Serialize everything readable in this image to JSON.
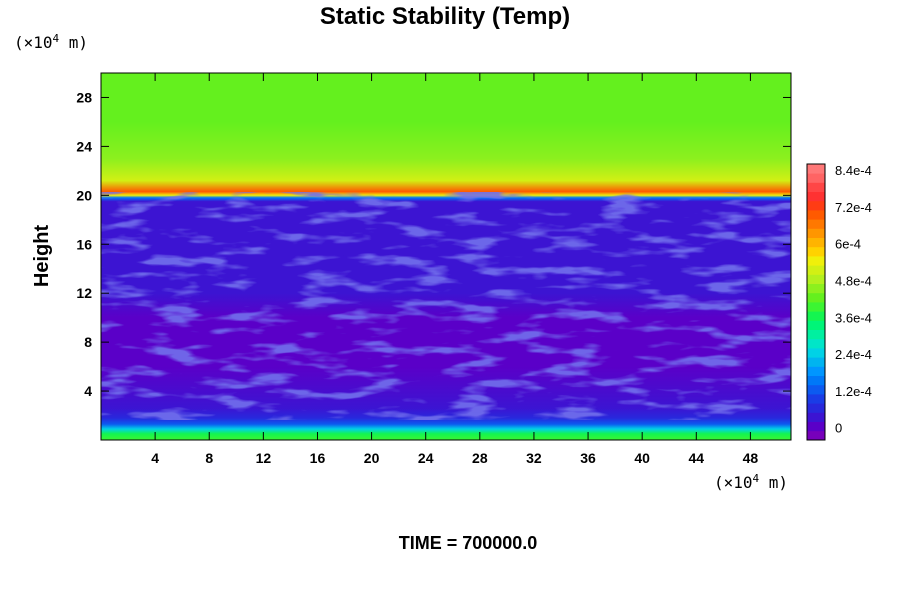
{
  "chart_data": {
    "type": "heatmap",
    "title": "Static Stability (Temp)",
    "xlabel": "",
    "ylabel": "Height",
    "x_unit_prefix": "(×10",
    "x_unit_exp": "4",
    "x_unit_suffix": " m)",
    "y_unit_prefix": "(×10",
    "y_unit_exp": "4",
    "y_unit_suffix": " m)",
    "xlim": [
      0,
      51
    ],
    "ylim": [
      0,
      30
    ],
    "x_ticks": [
      "4",
      "8",
      "12",
      "16",
      "20",
      "24",
      "28",
      "32",
      "36",
      "40",
      "44",
      "48"
    ],
    "y_ticks": [
      "4",
      "8",
      "12",
      "16",
      "20",
      "24",
      "28"
    ],
    "x_tick_values": [
      4,
      8,
      12,
      16,
      20,
      24,
      28,
      32,
      36,
      40,
      44,
      48
    ],
    "y_tick_values": [
      4,
      8,
      12,
      16,
      20,
      24,
      28
    ],
    "vertical_profile": [
      {
        "y": 0.0,
        "value": 0.0004
      },
      {
        "y": 0.5,
        "value": 0.00036
      },
      {
        "y": 0.9,
        "value": 0.00024
      },
      {
        "y": 1.3,
        "value": 0.00012
      },
      {
        "y": 1.8,
        "value": 6e-05
      },
      {
        "y": 2.6,
        "value": 3e-05
      },
      {
        "y": 6.0,
        "value": 1e-05
      },
      {
        "y": 10.0,
        "value": 1e-05
      },
      {
        "y": 12.0,
        "value": 2e-05
      },
      {
        "y": 16.0,
        "value": 3e-05
      },
      {
        "y": 19.5,
        "value": 3e-05
      },
      {
        "y": 19.8,
        "value": 0.00016
      },
      {
        "y": 20.0,
        "value": 0.00055
      },
      {
        "y": 20.3,
        "value": 0.0007
      },
      {
        "y": 21.2,
        "value": 0.0005
      },
      {
        "y": 23.0,
        "value": 0.00044
      },
      {
        "y": 26.0,
        "value": 0.00042
      },
      {
        "y": 30.0,
        "value": 0.00042
      }
    ],
    "colorbar": {
      "min": -4e-05,
      "max": 0.00086,
      "labels": [
        "8.4e-4",
        "7.2e-4",
        "6e-4",
        "4.8e-4",
        "3.6e-4",
        "2.4e-4",
        "1.2e-4",
        "0"
      ],
      "label_values": [
        0.00084,
        0.00072,
        0.0006,
        0.00048,
        0.00036,
        0.00024,
        0.00012,
        0
      ],
      "colors": [
        "#7700bb",
        "#5a00c8",
        "#3c14d2",
        "#2828dc",
        "#1a3ce6",
        "#0c5af0",
        "#0078f8",
        "#0096ff",
        "#00b4f0",
        "#00d2e6",
        "#00e6c8",
        "#00f0a0",
        "#00f578",
        "#14f550",
        "#3cf532",
        "#64f01e",
        "#8cf01e",
        "#b4f01e",
        "#d2f014",
        "#f0f00a",
        "#ffd200",
        "#ffb400",
        "#ff9600",
        "#ff7800",
        "#ff5a00",
        "#ff3c14",
        "#ff3232",
        "#ff4646",
        "#ff6464",
        "#ff7878"
      ]
    },
    "grid": false,
    "legend_placement": "right"
  },
  "footer": {
    "time_text": "TIME = 700000.0"
  }
}
